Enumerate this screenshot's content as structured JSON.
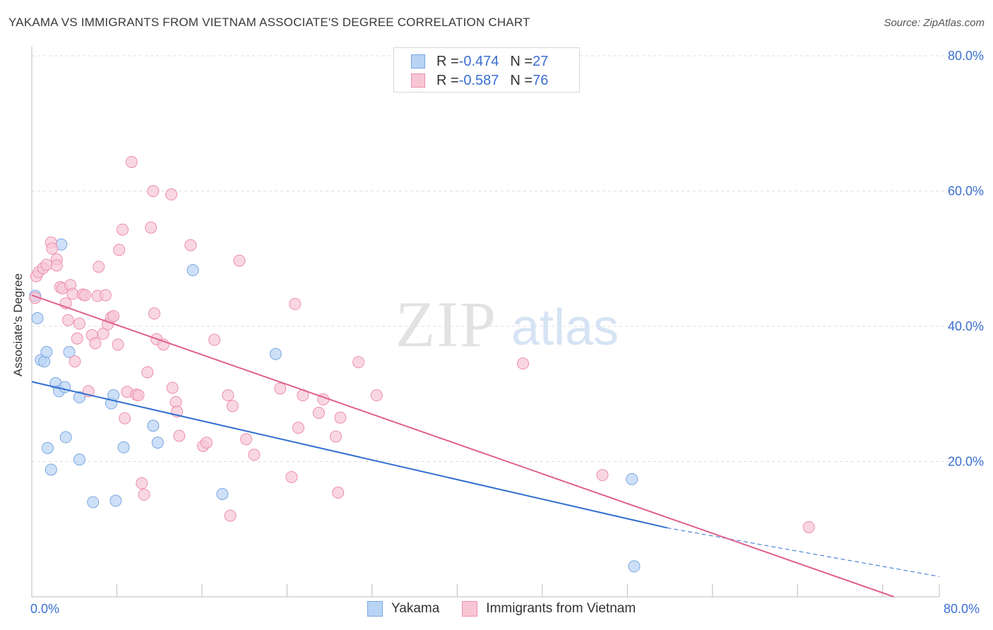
{
  "header": {
    "title": "YAKAMA VS IMMIGRANTS FROM VIETNAM ASSOCIATE'S DEGREE CORRELATION CHART",
    "source": "Source: ZipAtlas.com"
  },
  "watermark": {
    "zip": "ZIP",
    "atlas": "atlas"
  },
  "legend_top": [
    {
      "r_label": "R = ",
      "r_value": "-0.474",
      "n_label": "N = ",
      "n_value": "27"
    },
    {
      "r_label": "R = ",
      "r_value": "-0.587",
      "n_label": "N = ",
      "n_value": "76"
    }
  ],
  "legend_bottom": [
    "Yakama",
    "Immigrants from Vietnam"
  ],
  "x_tick_labels": {
    "min": "0.0%",
    "max": "80.0%"
  },
  "colors": {
    "yakama_fill": "#b9d3f5",
    "yakama_stroke": "#7aa6e0",
    "yakama_line": "#2f6fd0",
    "vietnam_fill": "#f7c6d5",
    "vietnam_stroke": "#ec8fab",
    "vietnam_line": "#e0608e",
    "axis_text": "#3a6fd0",
    "grid": "#dddddd"
  },
  "chart_data": {
    "type": "scatter",
    "title": "YAKAMA VS IMMIGRANTS FROM VIETNAM ASSOCIATE'S DEGREE CORRELATION CHART",
    "xlabel": "",
    "ylabel": "Associate's Degree",
    "xlim": [
      0,
      80
    ],
    "ylim": [
      0,
      80
    ],
    "y_ticks": [
      {
        "value": 20,
        "label": "20.0%"
      },
      {
        "value": 40,
        "label": "40.0%"
      },
      {
        "value": 60,
        "label": "60.0%"
      },
      {
        "value": 80,
        "label": "80.0%"
      }
    ],
    "x_ticks": [
      0,
      7.5,
      15,
      22.5,
      30,
      37.5,
      45,
      52.5,
      60,
      67.5,
      75,
      80
    ],
    "grid": "horizontal dashed",
    "legend_position": "top-center",
    "series": [
      {
        "name": "Yakama",
        "r": -0.474,
        "n": 27,
        "points": [
          [
            0.3,
            44.5
          ],
          [
            0.5,
            41.2
          ],
          [
            0.8,
            35.0
          ],
          [
            1.1,
            34.8
          ],
          [
            1.3,
            36.2
          ],
          [
            1.4,
            22.0
          ],
          [
            1.7,
            18.8
          ],
          [
            2.1,
            31.6
          ],
          [
            2.4,
            30.4
          ],
          [
            2.6,
            52.1
          ],
          [
            2.9,
            31.0
          ],
          [
            3.0,
            23.6
          ],
          [
            3.3,
            36.2
          ],
          [
            4.2,
            29.5
          ],
          [
            4.2,
            20.3
          ],
          [
            5.4,
            14.0
          ],
          [
            7.0,
            28.6
          ],
          [
            7.2,
            29.8
          ],
          [
            7.4,
            14.2
          ],
          [
            8.1,
            22.1
          ],
          [
            10.7,
            25.3
          ],
          [
            11.1,
            22.8
          ],
          [
            14.2,
            48.3
          ],
          [
            16.8,
            15.2
          ],
          [
            21.5,
            35.9
          ],
          [
            52.9,
            17.4
          ],
          [
            53.1,
            4.5
          ]
        ],
        "trend": {
          "x": [
            0,
            56
          ],
          "y": [
            31.8,
            10.2
          ]
        },
        "trend_dashed": {
          "x": [
            56,
            80
          ],
          "y": [
            10.2,
            3.0
          ]
        }
      },
      {
        "name": "Immigrants from Vietnam",
        "r": -0.587,
        "n": 76,
        "points": [
          [
            0.3,
            44.2
          ],
          [
            0.4,
            47.4
          ],
          [
            0.6,
            48.0
          ],
          [
            1.0,
            48.6
          ],
          [
            1.3,
            49.1
          ],
          [
            1.7,
            52.4
          ],
          [
            1.8,
            51.5
          ],
          [
            2.2,
            49.9
          ],
          [
            2.5,
            45.8
          ],
          [
            2.7,
            45.6
          ],
          [
            3.0,
            43.4
          ],
          [
            3.2,
            40.9
          ],
          [
            3.4,
            46.1
          ],
          [
            3.6,
            44.8
          ],
          [
            3.8,
            34.8
          ],
          [
            4.0,
            38.2
          ],
          [
            4.2,
            40.4
          ],
          [
            4.5,
            44.7
          ],
          [
            4.7,
            44.6
          ],
          [
            5.0,
            30.4
          ],
          [
            5.3,
            38.7
          ],
          [
            5.6,
            37.5
          ],
          [
            5.8,
            44.5
          ],
          [
            5.9,
            48.8
          ],
          [
            6.3,
            38.9
          ],
          [
            6.5,
            44.6
          ],
          [
            6.7,
            40.3
          ],
          [
            7.0,
            41.3
          ],
          [
            7.2,
            41.5
          ],
          [
            7.6,
            37.3
          ],
          [
            7.7,
            51.3
          ],
          [
            8.0,
            54.3
          ],
          [
            8.2,
            26.4
          ],
          [
            8.4,
            30.3
          ],
          [
            8.8,
            64.3
          ],
          [
            9.2,
            29.9
          ],
          [
            9.4,
            29.8
          ],
          [
            9.7,
            16.8
          ],
          [
            9.9,
            15.1
          ],
          [
            10.2,
            33.2
          ],
          [
            10.5,
            54.6
          ],
          [
            10.7,
            60.0
          ],
          [
            10.8,
            41.9
          ],
          [
            11.0,
            38.1
          ],
          [
            11.6,
            37.3
          ],
          [
            12.3,
            59.5
          ],
          [
            12.4,
            30.9
          ],
          [
            12.7,
            28.8
          ],
          [
            12.8,
            27.4
          ],
          [
            13.0,
            23.8
          ],
          [
            14.0,
            52.0
          ],
          [
            15.1,
            22.3
          ],
          [
            15.4,
            22.8
          ],
          [
            16.1,
            38.0
          ],
          [
            17.3,
            29.8
          ],
          [
            17.5,
            12.0
          ],
          [
            17.7,
            28.2
          ],
          [
            18.3,
            49.7
          ],
          [
            18.9,
            23.3
          ],
          [
            19.6,
            21.0
          ],
          [
            21.9,
            30.8
          ],
          [
            22.9,
            17.7
          ],
          [
            23.2,
            43.3
          ],
          [
            23.5,
            25.0
          ],
          [
            23.9,
            29.8
          ],
          [
            25.3,
            27.2
          ],
          [
            25.7,
            29.2
          ],
          [
            26.8,
            23.7
          ],
          [
            27.0,
            15.4
          ],
          [
            27.2,
            26.5
          ],
          [
            28.8,
            34.7
          ],
          [
            30.4,
            29.8
          ],
          [
            43.3,
            34.5
          ],
          [
            50.3,
            18.0
          ],
          [
            68.5,
            10.3
          ],
          [
            2.2,
            49.0
          ]
        ],
        "trend": {
          "x": [
            0,
            76
          ],
          "y": [
            44.6,
            0
          ]
        }
      }
    ]
  }
}
